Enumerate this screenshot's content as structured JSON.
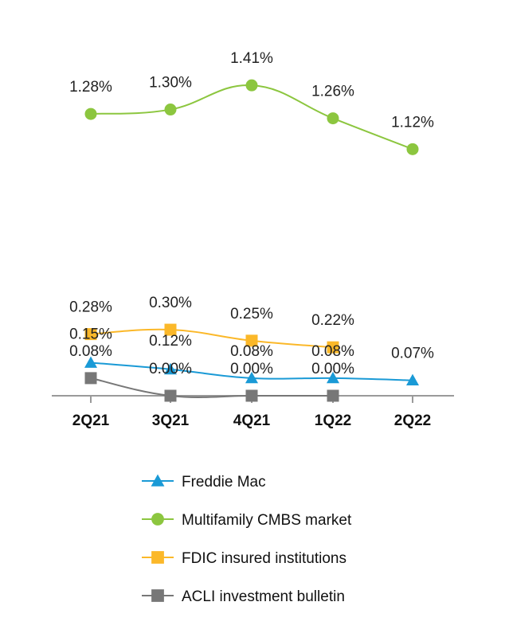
{
  "chart_data": {
    "type": "line",
    "categories": [
      "2Q21",
      "3Q21",
      "4Q21",
      "1Q22",
      "2Q22"
    ],
    "ylim": [
      0,
      1.45
    ],
    "grid": false,
    "legend_position": "bottom",
    "series": [
      {
        "name": "Freddie Mac",
        "marker": "triangle",
        "color": "#1a9ad6",
        "values": [
          0.15,
          0.12,
          0.08,
          0.08,
          0.07
        ],
        "labels": [
          "0.15%",
          "0.12%",
          "0.08%",
          "0.08%",
          "0.07%"
        ]
      },
      {
        "name": "Multifamily CMBS market",
        "marker": "circle",
        "color": "#8cc63f",
        "values": [
          1.28,
          1.3,
          1.41,
          1.26,
          1.12
        ],
        "labels": [
          "1.28%",
          "1.30%",
          "1.41%",
          "1.26%",
          "1.12%"
        ]
      },
      {
        "name": "FDIC insured institutions",
        "marker": "square",
        "color": "#fbb829",
        "values": [
          0.28,
          0.3,
          0.25,
          0.22,
          null
        ],
        "labels": [
          "0.28%",
          "0.30%",
          "0.25%",
          "0.22%",
          null
        ]
      },
      {
        "name": "ACLI investment bulletin",
        "marker": "square",
        "color": "#777777",
        "values": [
          0.08,
          0.0,
          0.0,
          0.0,
          null
        ],
        "labels": [
          "0.08%",
          "0.00%",
          "0.00%",
          "0.00%",
          null
        ]
      }
    ]
  }
}
